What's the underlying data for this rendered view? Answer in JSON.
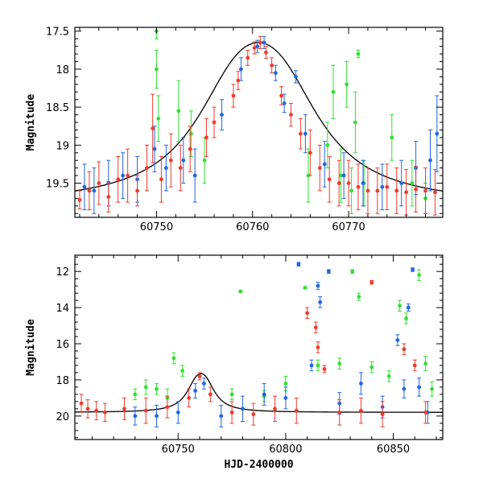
{
  "chart_data": [
    {
      "type": "scatter",
      "title": "",
      "xlabel": "",
      "ylabel": "Magnitude",
      "xlim": [
        60741.5,
        60779.8
      ],
      "ylim": [
        19.95,
        17.45
      ],
      "y_inverted": true,
      "x_ticks": [
        60750,
        60760,
        60770
      ],
      "y_ticks": [
        17.5,
        18,
        18.5,
        19,
        19.5
      ],
      "x_tick_labels": [
        "60750",
        "60760",
        "60770"
      ],
      "y_tick_labels": [
        "17.5",
        "18",
        "18.5",
        "19",
        "19.5"
      ],
      "grid": false,
      "legend": "none",
      "series": [
        {
          "color": "#ef3b2c",
          "points": [
            [
              60742,
              19.72,
              0.12
            ],
            [
              60743,
              19.6,
              0.25
            ],
            [
              60744,
              19.5,
              0.28
            ],
            [
              60745,
              19.68,
              0.2
            ],
            [
              60746,
              19.45,
              0.3
            ],
            [
              60747,
              19.4,
              0.35
            ],
            [
              60748,
              19.6,
              0.2
            ],
            [
              60749,
              19.3,
              0.3
            ],
            [
              60749.6,
              18.78,
              0.45
            ],
            [
              60750.5,
              19.45,
              0.3
            ],
            [
              60751.5,
              19.2,
              0.35
            ],
            [
              60752.5,
              19.3,
              0.3
            ],
            [
              60753.5,
              19.05,
              0.3
            ],
            [
              60755.2,
              18.9,
              0.25
            ],
            [
              60756,
              18.7,
              0.2
            ],
            [
              60758,
              18.35,
              0.15
            ],
            [
              60758.5,
              18.15,
              0.12
            ],
            [
              60759.5,
              17.85,
              0.1
            ],
            [
              60760.2,
              17.72,
              0.08
            ],
            [
              60760.8,
              17.65,
              0.08
            ],
            [
              60761.4,
              17.78,
              0.08
            ],
            [
              60762,
              17.95,
              0.1
            ],
            [
              60763,
              18.35,
              0.12
            ],
            [
              60764,
              18.6,
              0.15
            ],
            [
              60765,
              18.85,
              0.2
            ],
            [
              60766,
              19.1,
              0.3
            ],
            [
              60767,
              19.3,
              0.3
            ],
            [
              60768,
              19.45,
              0.3
            ],
            [
              60769,
              19.5,
              0.3
            ],
            [
              60770,
              19.5,
              0.3
            ],
            [
              60771,
              19.55,
              0.3
            ],
            [
              60772,
              19.6,
              0.3
            ],
            [
              60773,
              19.6,
              0.3
            ],
            [
              60774,
              19.55,
              0.3
            ],
            [
              60775,
              19.6,
              0.3
            ],
            [
              60776,
              19.62,
              0.3
            ],
            [
              60777,
              19.58,
              0.3
            ],
            [
              60778,
              19.6,
              0.3
            ],
            [
              60779,
              19.62,
              0.3
            ]
          ]
        },
        {
          "color": "#2166e0",
          "points": [
            [
              60742.5,
              19.55,
              0.3
            ],
            [
              60743.5,
              19.6,
              0.3
            ],
            [
              60745,
              19.5,
              0.3
            ],
            [
              60746.5,
              19.4,
              0.3
            ],
            [
              60748,
              19.45,
              0.3
            ],
            [
              60749.8,
              19.05,
              0.3
            ],
            [
              60751,
              19.3,
              0.3
            ],
            [
              60752.8,
              19.2,
              0.3
            ],
            [
              60754,
              19.4,
              0.35
            ],
            [
              60756.8,
              18.6,
              0.2
            ],
            [
              60758.8,
              18.0,
              0.15
            ],
            [
              60760.5,
              17.7,
              0.08
            ],
            [
              60761.2,
              17.65,
              0.08
            ],
            [
              60762.4,
              18.05,
              0.1
            ],
            [
              60763.3,
              18.45,
              0.12
            ],
            [
              60764.5,
              18.1,
              0.08
            ],
            [
              60765.5,
              18.85,
              0.25
            ],
            [
              60767.5,
              19.25,
              0.3
            ],
            [
              60769.5,
              19.4,
              0.3
            ],
            [
              60771.5,
              19.5,
              0.3
            ],
            [
              60773.5,
              19.55,
              0.3
            ],
            [
              60775.5,
              19.5,
              0.3
            ],
            [
              60777,
              19.3,
              0.35
            ],
            [
              60778.5,
              19.2,
              0.4
            ],
            [
              60779.2,
              18.85,
              0.5
            ]
          ]
        },
        {
          "color": "#33e033",
          "points": [
            [
              60750,
              17.5,
              0.1
            ],
            [
              60750,
              18.0,
              0.25
            ],
            [
              60750.2,
              18.65,
              0.3
            ],
            [
              60752.3,
              18.55,
              0.4
            ],
            [
              60753.6,
              18.85,
              0.3
            ],
            [
              60755,
              19.2,
              0.3
            ],
            [
              60765.8,
              19.4,
              0.35
            ],
            [
              60767.8,
              19.0,
              0.3
            ],
            [
              60768.4,
              18.3,
              0.35
            ],
            [
              60769.2,
              19.4,
              0.35
            ],
            [
              60769.8,
              18.2,
              0.3
            ],
            [
              60770.3,
              19.6,
              0.3
            ],
            [
              60770.7,
              18.7,
              0.4
            ],
            [
              60771,
              17.8,
              0.05
            ],
            [
              60771.6,
              19.5,
              0.3
            ],
            [
              60774.5,
              18.9,
              0.3
            ],
            [
              60776.6,
              19.5,
              0.3
            ],
            [
              60778,
              19.7,
              0.2
            ]
          ]
        }
      ],
      "model_curve": {
        "color": "#000000",
        "peak_x": 60760.6,
        "peak_mag": 17.65,
        "baseline_mag": 19.8,
        "amplitude_mag": 2.15,
        "timescale_days": 4.2
      }
    },
    {
      "type": "scatter",
      "title": "",
      "xlabel": "HJD-2400000",
      "ylabel": "Magnitude",
      "xlim": [
        60702,
        60873
      ],
      "ylim": [
        21.3,
        11.1
      ],
      "y_inverted": true,
      "x_ticks": [
        60750,
        60800,
        60850
      ],
      "y_ticks": [
        12,
        14,
        16,
        18,
        20
      ],
      "x_tick_labels": [
        "60750",
        "60800",
        "60850"
      ],
      "y_tick_labels": [
        "12",
        "14",
        "16",
        "18",
        "20"
      ],
      "grid": false,
      "legend": "none",
      "series": [
        {
          "color": "#ef3b2c",
          "points": [
            [
              60705,
              19.3,
              0.5
            ],
            [
              60708,
              19.6,
              0.5
            ],
            [
              60712,
              19.7,
              0.5
            ],
            [
              60716,
              19.8,
              0.5
            ],
            [
              60725,
              19.6,
              0.6
            ],
            [
              60735,
              19.7,
              0.7
            ],
            [
              60745,
              19.5,
              0.6
            ],
            [
              60755,
              19.0,
              0.5
            ],
            [
              60760,
              17.8,
              0.2
            ],
            [
              60765,
              18.8,
              0.4
            ],
            [
              60775,
              19.8,
              0.6
            ],
            [
              60785,
              19.9,
              0.6
            ],
            [
              60795,
              19.6,
              0.7
            ],
            [
              60805,
              19.7,
              0.7
            ],
            [
              60810,
              14.3,
              0.3
            ],
            [
              60814,
              15.1,
              0.3
            ],
            [
              60815,
              16.2,
              0.3
            ],
            [
              60818,
              17.4,
              0.2
            ],
            [
              60825,
              19.8,
              0.7
            ],
            [
              60835,
              19.7,
              0.7
            ],
            [
              60840,
              12.6,
              0.1
            ],
            [
              60845,
              19.9,
              0.7
            ],
            [
              60855,
              16.3,
              0.3
            ],
            [
              60860,
              17.2,
              0.3
            ],
            [
              60865,
              19.8,
              0.6
            ]
          ]
        },
        {
          "color": "#2166e0",
          "points": [
            [
              60730,
              20.0,
              0.5
            ],
            [
              60740,
              20.0,
              0.6
            ],
            [
              60750,
              19.8,
              0.6
            ],
            [
              60758,
              18.6,
              0.4
            ],
            [
              60762,
              18.2,
              0.3
            ],
            [
              60770,
              20.0,
              0.6
            ],
            [
              60780,
              19.6,
              0.7
            ],
            [
              60790,
              18.8,
              0.6
            ],
            [
              60800,
              19.0,
              0.6
            ],
            [
              60806,
              11.6,
              0.1
            ],
            [
              60812,
              17.2,
              0.3
            ],
            [
              60815,
              12.8,
              0.2
            ],
            [
              60816,
              13.7,
              0.3
            ],
            [
              60820,
              12.0,
              0.1
            ],
            [
              60825,
              19.3,
              0.6
            ],
            [
              60835,
              18.2,
              0.6
            ],
            [
              60845,
              19.5,
              0.6
            ],
            [
              60852,
              15.8,
              0.3
            ],
            [
              60855,
              18.5,
              0.5
            ],
            [
              60857,
              14.0,
              0.2
            ],
            [
              60859,
              11.9,
              0.1
            ],
            [
              60862,
              18.4,
              0.5
            ],
            [
              60866,
              19.8,
              0.6
            ]
          ]
        },
        {
          "color": "#33e033",
          "points": [
            [
              60730,
              18.8,
              0.3
            ],
            [
              60735,
              18.4,
              0.4
            ],
            [
              60740,
              18.5,
              0.3
            ],
            [
              60745,
              19.0,
              0.5
            ],
            [
              60748,
              16.8,
              0.3
            ],
            [
              60752,
              17.5,
              0.3
            ],
            [
              60775,
              18.8,
              0.3
            ],
            [
              60779,
              13.1,
              0.05
            ],
            [
              60790,
              18.9,
              0.3
            ],
            [
              60800,
              18.2,
              0.4
            ],
            [
              60809,
              12.9,
              0.05
            ],
            [
              60815,
              17.2,
              0.3
            ],
            [
              60825,
              17.1,
              0.3
            ],
            [
              60831,
              12.0,
              0.1
            ],
            [
              60834,
              13.4,
              0.2
            ],
            [
              60840,
              17.3,
              0.3
            ],
            [
              60848,
              17.8,
              0.3
            ],
            [
              60853,
              13.9,
              0.3
            ],
            [
              60856,
              14.6,
              0.3
            ],
            [
              60862,
              12.2,
              0.3
            ],
            [
              60865,
              17.1,
              0.4
            ],
            [
              60868,
              18.5,
              0.4
            ]
          ]
        }
      ],
      "model_curve": {
        "color": "#000000",
        "peak_x": 60760.6,
        "peak_mag": 17.65,
        "baseline_mag": 19.8,
        "amplitude_mag": 2.15,
        "timescale_days": 4.2
      }
    }
  ]
}
